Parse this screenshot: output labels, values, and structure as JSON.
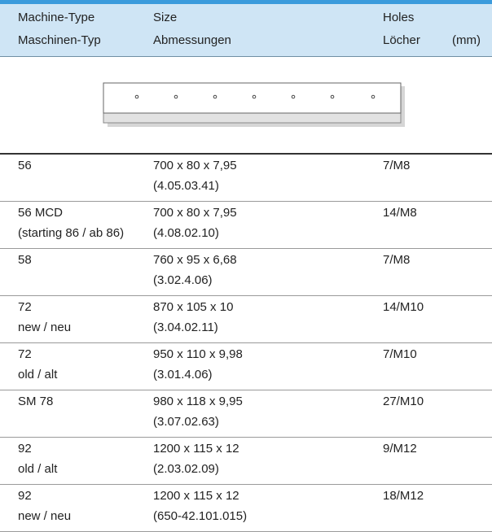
{
  "header": {
    "type_en": "Machine-Type",
    "type_de": "Maschinen-Typ",
    "size_en": "Size",
    "size_de": "Abmessungen",
    "holes_en": "Holes",
    "holes_de": "Löcher",
    "unit": "(mm)"
  },
  "table": {
    "rows": [
      [
        [
          "56",
          ""
        ],
        [
          "700 x 80 x 7,95",
          "(4.05.03.41)"
        ],
        "7/M8"
      ],
      [
        [
          "56 MCD",
          "(starting 86 / ab 86)"
        ],
        [
          "700 x 80 x 7,95",
          "(4.08.02.10)"
        ],
        "14/M8"
      ],
      [
        [
          "58",
          ""
        ],
        [
          "760 x 95 x 6,68",
          "(3.02.4.06)"
        ],
        "7/M8"
      ],
      [
        [
          "72",
          "new / neu"
        ],
        [
          "870 x 105 x 10",
          "(3.04.02.11)"
        ],
        "14/M10"
      ],
      [
        [
          "72",
          "old / alt"
        ],
        [
          "950 x 110 x 9,98",
          "(3.01.4.06)"
        ],
        "7/M10"
      ],
      [
        [
          "SM 78",
          ""
        ],
        [
          "980 x 118 x 9,95",
          "(3.07.02.63)"
        ],
        "27/M10"
      ],
      [
        [
          "92",
          "old / alt"
        ],
        [
          "1200 x 115 x 12",
          "(2.03.02.09)"
        ],
        "9/M12"
      ],
      [
        [
          "92",
          "new / neu"
        ],
        [
          "1200 x 115 x 12",
          "(650-42.101.015)"
        ],
        "18/M12"
      ]
    ]
  }
}
